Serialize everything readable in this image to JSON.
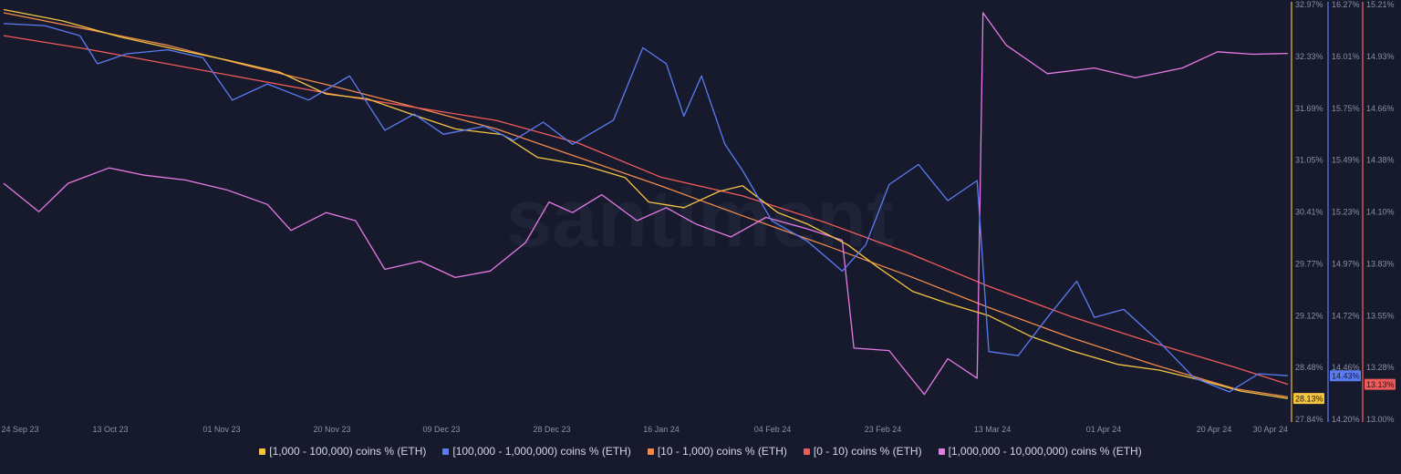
{
  "watermark": "santiment",
  "chart_data": {
    "type": "line",
    "x_ticks": [
      "24 Sep 23",
      "13 Oct 23",
      "01 Nov 23",
      "20 Nov 23",
      "09 Dec 23",
      "28 Dec 23",
      "16 Jan 24",
      "04 Feb 24",
      "23 Feb 24",
      "13 Mar 24",
      "01 Apr 24",
      "20 Apr 24",
      "30 Apr 24"
    ],
    "xlim": [
      "2023-09-24",
      "2024-04-30"
    ],
    "grid": false,
    "legend_position": "bottom",
    "axes": [
      {
        "id": "a1",
        "color": "#e9b949",
        "ticks": [
          "32.97%",
          "32.33%",
          "31.69%",
          "31.05%",
          "30.41%",
          "29.77%",
          "29.12%",
          "28.48%",
          "27.84%"
        ],
        "ylim": [
          27.84,
          32.97
        ]
      },
      {
        "id": "a2",
        "color": "#5b7cf6",
        "ticks": [
          "16.27%",
          "16.01%",
          "15.75%",
          "15.49%",
          "15.23%",
          "14.97%",
          "14.72%",
          "14.46%",
          "14.20%"
        ],
        "ylim": [
          14.2,
          16.27
        ]
      },
      {
        "id": "a3",
        "color": "#f46b5c",
        "ticks": [
          "15.21%",
          "14.93%",
          "14.66%",
          "14.38%",
          "14.10%",
          "13.83%",
          "13.55%",
          "13.28%",
          "13.00%"
        ],
        "ylim": [
          13.0,
          15.21
        ]
      }
    ],
    "series": [
      {
        "name": "[1,000 - 100,000) coins % (ETH)",
        "color": "#f5c542",
        "axis": "a1",
        "last_label": "28.13%",
        "points": [
          [
            "2023-09-24",
            32.92
          ],
          [
            "2023-10-04",
            32.78
          ],
          [
            "2023-10-14",
            32.58
          ],
          [
            "2023-10-24",
            32.42
          ],
          [
            "2023-11-01",
            32.3
          ],
          [
            "2023-11-10",
            32.15
          ],
          [
            "2023-11-18",
            31.88
          ],
          [
            "2023-11-25",
            31.82
          ],
          [
            "2023-12-03",
            31.62
          ],
          [
            "2023-12-10",
            31.45
          ],
          [
            "2023-12-18",
            31.38
          ],
          [
            "2023-12-24",
            31.1
          ],
          [
            "2024-01-01",
            31.0
          ],
          [
            "2024-01-08",
            30.85
          ],
          [
            "2024-01-12",
            30.55
          ],
          [
            "2024-01-18",
            30.48
          ],
          [
            "2024-01-24",
            30.68
          ],
          [
            "2024-01-28",
            30.75
          ],
          [
            "2024-02-03",
            30.42
          ],
          [
            "2024-02-08",
            30.28
          ],
          [
            "2024-02-15",
            30.02
          ],
          [
            "2024-02-20",
            29.75
          ],
          [
            "2024-02-26",
            29.45
          ],
          [
            "2024-03-03",
            29.3
          ],
          [
            "2024-03-10",
            29.15
          ],
          [
            "2024-03-17",
            28.9
          ],
          [
            "2024-03-24",
            28.72
          ],
          [
            "2024-04-01",
            28.55
          ],
          [
            "2024-04-08",
            28.48
          ],
          [
            "2024-04-15",
            28.36
          ],
          [
            "2024-04-22",
            28.22
          ],
          [
            "2024-04-30",
            28.13
          ]
        ]
      },
      {
        "name": "[100,000  - 1,000,000) coins % (ETH)",
        "color": "#5b7cf6",
        "axis": "a2",
        "last_label": "14.43%",
        "points": [
          [
            "2023-09-24",
            16.18
          ],
          [
            "2023-10-01",
            16.17
          ],
          [
            "2023-10-07",
            16.12
          ],
          [
            "2023-10-10",
            15.98
          ],
          [
            "2023-10-15",
            16.03
          ],
          [
            "2023-10-22",
            16.05
          ],
          [
            "2023-10-28",
            16.01
          ],
          [
            "2023-11-02",
            15.8
          ],
          [
            "2023-11-08",
            15.88
          ],
          [
            "2023-11-15",
            15.8
          ],
          [
            "2023-11-22",
            15.92
          ],
          [
            "2023-11-28",
            15.65
          ],
          [
            "2023-12-03",
            15.73
          ],
          [
            "2023-12-08",
            15.63
          ],
          [
            "2023-12-15",
            15.67
          ],
          [
            "2023-12-20",
            15.6
          ],
          [
            "2023-12-25",
            15.69
          ],
          [
            "2023-12-30",
            15.58
          ],
          [
            "2024-01-06",
            15.7
          ],
          [
            "2024-01-11",
            16.06
          ],
          [
            "2024-01-15",
            15.98
          ],
          [
            "2024-01-18",
            15.72
          ],
          [
            "2024-01-21",
            15.92
          ],
          [
            "2024-01-25",
            15.58
          ],
          [
            "2024-01-28",
            15.45
          ],
          [
            "2024-02-02",
            15.2
          ],
          [
            "2024-02-08",
            15.1
          ],
          [
            "2024-02-14",
            14.95
          ],
          [
            "2024-02-18",
            15.08
          ],
          [
            "2024-02-22",
            15.38
          ],
          [
            "2024-02-27",
            15.48
          ],
          [
            "2024-03-03",
            15.3
          ],
          [
            "2024-03-08",
            15.4
          ],
          [
            "2024-03-10",
            14.55
          ],
          [
            "2024-03-15",
            14.53
          ],
          [
            "2024-03-20",
            14.72
          ],
          [
            "2024-03-25",
            14.9
          ],
          [
            "2024-03-28",
            14.72
          ],
          [
            "2024-04-02",
            14.76
          ],
          [
            "2024-04-08",
            14.6
          ],
          [
            "2024-04-14",
            14.42
          ],
          [
            "2024-04-20",
            14.35
          ],
          [
            "2024-04-25",
            14.44
          ],
          [
            "2024-04-30",
            14.43
          ]
        ]
      },
      {
        "name": "[10 - 1,000) coins % (ETH)",
        "color": "#f08a4b",
        "axis": "a1",
        "last_label": "",
        "points": [
          [
            "2023-09-24",
            32.88
          ],
          [
            "2023-10-08",
            32.68
          ],
          [
            "2023-10-22",
            32.48
          ],
          [
            "2023-11-05",
            32.22
          ],
          [
            "2023-11-19",
            31.98
          ],
          [
            "2023-12-03",
            31.72
          ],
          [
            "2023-12-17",
            31.45
          ],
          [
            "2023-12-31",
            31.1
          ],
          [
            "2024-01-14",
            30.75
          ],
          [
            "2024-01-28",
            30.38
          ],
          [
            "2024-02-11",
            30.02
          ],
          [
            "2024-02-25",
            29.65
          ],
          [
            "2024-03-10",
            29.25
          ],
          [
            "2024-03-24",
            28.88
          ],
          [
            "2024-04-07",
            28.55
          ],
          [
            "2024-04-21",
            28.25
          ],
          [
            "2024-04-30",
            28.15
          ]
        ]
      },
      {
        "name": "[0 - 10) coins % (ETH)",
        "color": "#ef5b5b",
        "axis": "a3",
        "last_label": "13.13%",
        "points": [
          [
            "2023-09-24",
            15.05
          ],
          [
            "2023-10-08",
            14.98
          ],
          [
            "2023-10-22",
            14.9
          ],
          [
            "2023-11-05",
            14.82
          ],
          [
            "2023-11-19",
            14.74
          ],
          [
            "2023-12-03",
            14.67
          ],
          [
            "2023-12-17",
            14.6
          ],
          [
            "2023-12-31",
            14.48
          ],
          [
            "2024-01-14",
            14.3
          ],
          [
            "2024-01-28",
            14.2
          ],
          [
            "2024-02-11",
            14.06
          ],
          [
            "2024-02-25",
            13.9
          ],
          [
            "2024-03-10",
            13.72
          ],
          [
            "2024-03-24",
            13.56
          ],
          [
            "2024-04-07",
            13.42
          ],
          [
            "2024-04-21",
            13.29
          ],
          [
            "2024-04-30",
            13.2
          ]
        ]
      },
      {
        "name": "[1,000,000 - 10,000,000) coins % (ETH)",
        "color": "#e67ae6",
        "axis": "a1",
        "last_label": "",
        "points": [
          [
            "2023-09-24",
            30.78
          ],
          [
            "2023-09-30",
            30.43
          ],
          [
            "2023-10-05",
            30.78
          ],
          [
            "2023-10-12",
            30.97
          ],
          [
            "2023-10-18",
            30.88
          ],
          [
            "2023-10-25",
            30.82
          ],
          [
            "2023-11-01",
            30.7
          ],
          [
            "2023-11-08",
            30.52
          ],
          [
            "2023-11-12",
            30.2
          ],
          [
            "2023-11-18",
            30.42
          ],
          [
            "2023-11-23",
            30.32
          ],
          [
            "2023-11-28",
            29.72
          ],
          [
            "2023-12-04",
            29.82
          ],
          [
            "2023-12-10",
            29.62
          ],
          [
            "2023-12-16",
            29.7
          ],
          [
            "2023-12-22",
            30.05
          ],
          [
            "2023-12-26",
            30.55
          ],
          [
            "2023-12-30",
            30.42
          ],
          [
            "2024-01-04",
            30.64
          ],
          [
            "2024-01-10",
            30.32
          ],
          [
            "2024-01-15",
            30.48
          ],
          [
            "2024-01-20",
            30.28
          ],
          [
            "2024-01-26",
            30.12
          ],
          [
            "2024-02-01",
            30.36
          ],
          [
            "2024-02-08",
            30.22
          ],
          [
            "2024-02-14",
            30.08
          ],
          [
            "2024-02-16",
            28.75
          ],
          [
            "2024-02-22",
            28.72
          ],
          [
            "2024-02-28",
            28.18
          ],
          [
            "2024-03-03",
            28.62
          ],
          [
            "2024-03-08",
            28.38
          ],
          [
            "2024-03-09",
            32.88
          ],
          [
            "2024-03-13",
            32.48
          ],
          [
            "2024-03-20",
            32.13
          ],
          [
            "2024-03-28",
            32.2
          ],
          [
            "2024-04-04",
            32.08
          ],
          [
            "2024-04-12",
            32.2
          ],
          [
            "2024-04-18",
            32.4
          ],
          [
            "2024-04-24",
            32.37
          ],
          [
            "2024-04-30",
            32.38
          ]
        ]
      }
    ]
  },
  "legend": [
    {
      "label": "[1,000 - 100,000) coins % (ETH)",
      "color": "#f5c542"
    },
    {
      "label": "[100,000  - 1,000,000) coins % (ETH)",
      "color": "#5b7cf6"
    },
    {
      "label": "[10 - 1,000) coins % (ETH)",
      "color": "#f08a4b"
    },
    {
      "label": "[0 - 10) coins % (ETH)",
      "color": "#ef5b5b"
    },
    {
      "label": "[1,000,000 - 10,000,000) coins % (ETH)",
      "color": "#e67ae6"
    }
  ]
}
